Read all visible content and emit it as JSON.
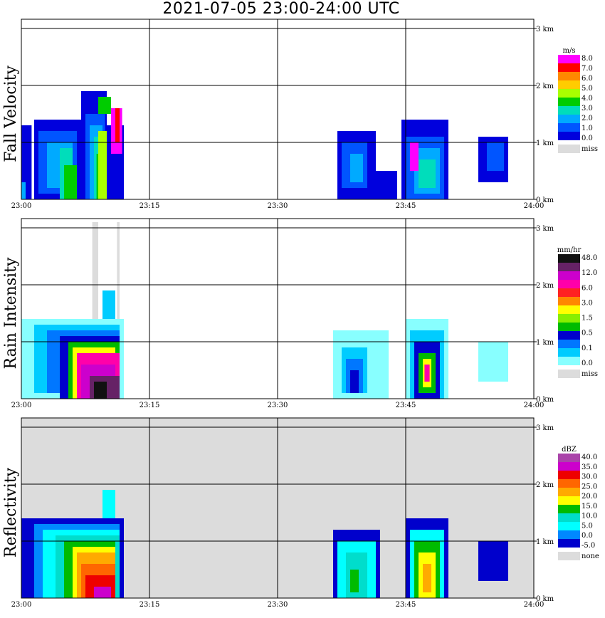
{
  "title": "2021-07-05   23:00-24:00 UTC",
  "x_ticks": [
    "23:00",
    "23:15",
    "23:30",
    "23:45",
    "24:00"
  ],
  "y_ticks": [
    "0 km",
    "1 km",
    "2 km",
    "3 km"
  ],
  "chart_data": [
    {
      "type": "heatmap",
      "ylabel": "Fall Velocity",
      "background": "#ffffff",
      "colorbar": {
        "unit": "m/s",
        "labels": [
          "8.0",
          "7.0",
          "6.0",
          "5.0",
          "4.0",
          "3.0",
          "2.0",
          "1.0",
          "0.0"
        ],
        "colors": [
          "#ff00ff",
          "#ff0000",
          "#ff8800",
          "#ffcc00",
          "#aaff00",
          "#00cc00",
          "#00ddbb",
          "#00aaff",
          "#0055ff",
          "#0000dd"
        ],
        "missing_label": "miss",
        "missing_color": "#dcdcdc"
      },
      "cells": [
        {
          "t0": 0.0,
          "t1": 1.2,
          "h0": 0.0,
          "h1": 1.3,
          "color": "#0000dd"
        },
        {
          "t0": 0.0,
          "t1": 0.5,
          "h0": 0.0,
          "h1": 0.3,
          "color": "#00aaff"
        },
        {
          "t0": 1.5,
          "t1": 7.0,
          "h0": 0.0,
          "h1": 1.4,
          "color": "#0000dd"
        },
        {
          "t0": 2.0,
          "t1": 6.5,
          "h0": 0.1,
          "h1": 1.2,
          "color": "#0055ff"
        },
        {
          "t0": 3.0,
          "t1": 6.0,
          "h0": 0.2,
          "h1": 1.0,
          "color": "#00aaff"
        },
        {
          "t0": 4.5,
          "t1": 6.0,
          "h0": 0.0,
          "h1": 0.9,
          "color": "#00ddbb"
        },
        {
          "t0": 5.0,
          "t1": 6.5,
          "h0": 0.0,
          "h1": 0.6,
          "color": "#00cc00"
        },
        {
          "t0": 7.0,
          "t1": 10.0,
          "h0": 0.0,
          "h1": 1.9,
          "color": "#0000dd"
        },
        {
          "t0": 7.5,
          "t1": 9.8,
          "h0": 0.0,
          "h1": 1.5,
          "color": "#0055ff"
        },
        {
          "t0": 8.0,
          "t1": 9.5,
          "h0": 0.0,
          "h1": 1.3,
          "color": "#00aaff"
        },
        {
          "t0": 8.5,
          "t1": 9.5,
          "h0": 0.0,
          "h1": 1.1,
          "color": "#00ddbb"
        },
        {
          "t0": 8.8,
          "t1": 9.3,
          "h0": 0.0,
          "h1": 0.8,
          "color": "#00cc00"
        },
        {
          "t0": 9.0,
          "t1": 10.5,
          "h0": 0.0,
          "h1": 1.2,
          "color": "#aaff00"
        },
        {
          "t0": 10.0,
          "t1": 12.0,
          "h0": 0.0,
          "h1": 1.3,
          "color": "#0000dd"
        },
        {
          "t0": 10.5,
          "t1": 11.8,
          "h0": 0.8,
          "h1": 1.6,
          "color": "#ff00ff"
        },
        {
          "t0": 11.0,
          "t1": 11.5,
          "h0": 1.0,
          "h1": 1.6,
          "color": "#ff0000"
        },
        {
          "t0": 9.0,
          "t1": 10.5,
          "h0": 1.5,
          "h1": 1.8,
          "color": "#00cc00"
        },
        {
          "t0": 37.0,
          "t1": 41.5,
          "h0": 0.0,
          "h1": 1.2,
          "color": "#0000dd"
        },
        {
          "t0": 37.5,
          "t1": 40.5,
          "h0": 0.2,
          "h1": 1.0,
          "color": "#0055ff"
        },
        {
          "t0": 38.5,
          "t1": 40.0,
          "h0": 0.3,
          "h1": 0.8,
          "color": "#00aaff"
        },
        {
          "t0": 41.5,
          "t1": 44.0,
          "h0": 0.0,
          "h1": 0.5,
          "color": "#0000dd"
        },
        {
          "t0": 44.5,
          "t1": 50.0,
          "h0": 0.0,
          "h1": 1.4,
          "color": "#0000dd"
        },
        {
          "t0": 45.0,
          "t1": 49.5,
          "h0": 0.0,
          "h1": 1.1,
          "color": "#0055ff"
        },
        {
          "t0": 46.0,
          "t1": 49.0,
          "h0": 0.1,
          "h1": 0.9,
          "color": "#00aaff"
        },
        {
          "t0": 46.5,
          "t1": 48.5,
          "h0": 0.2,
          "h1": 0.7,
          "color": "#00ddbb"
        },
        {
          "t0": 45.5,
          "t1": 46.5,
          "h0": 0.5,
          "h1": 1.0,
          "color": "#ff00ff"
        },
        {
          "t0": 53.5,
          "t1": 57.0,
          "h0": 0.3,
          "h1": 1.1,
          "color": "#0000dd"
        },
        {
          "t0": 54.5,
          "t1": 56.5,
          "h0": 0.5,
          "h1": 1.0,
          "color": "#0055ff"
        }
      ]
    },
    {
      "type": "heatmap",
      "ylabel": "Rain Intensity",
      "background": "#ffffff",
      "colorbar": {
        "unit": "mm/hr",
        "labels": [
          "48.0",
          "12.0",
          "6.0",
          "3.0",
          "1.5",
          "0.5",
          "0.1",
          "0.0"
        ],
        "colors": [
          "#111111",
          "#662266",
          "#cc00cc",
          "#ff00aa",
          "#ff2222",
          "#ff8800",
          "#ffff00",
          "#88ee00",
          "#00bb00",
          "#0000cc",
          "#0077ff",
          "#00ccff",
          "#88ffff"
        ],
        "missing_label": "miss",
        "missing_color": "#dcdcdc"
      },
      "cells": [
        {
          "t0": 8.3,
          "t1": 9.0,
          "h0": 0.0,
          "h1": 3.1,
          "color": "#dcdcdc"
        },
        {
          "t0": 11.2,
          "t1": 11.5,
          "h0": 0.0,
          "h1": 3.1,
          "color": "#dcdcdc"
        },
        {
          "t0": 0.0,
          "t1": 12.0,
          "h0": 0.0,
          "h1": 1.4,
          "color": "#88ffff"
        },
        {
          "t0": 1.5,
          "t1": 11.5,
          "h0": 0.1,
          "h1": 1.3,
          "color": "#00ccff"
        },
        {
          "t0": 3.0,
          "t1": 11.5,
          "h0": 0.1,
          "h1": 1.2,
          "color": "#0077ff"
        },
        {
          "t0": 4.5,
          "t1": 11.5,
          "h0": 0.0,
          "h1": 1.1,
          "color": "#0000cc"
        },
        {
          "t0": 5.5,
          "t1": 11.5,
          "h0": 0.0,
          "h1": 1.0,
          "color": "#00bb00"
        },
        {
          "t0": 6.0,
          "t1": 11.0,
          "h0": 0.0,
          "h1": 0.9,
          "color": "#ffff00"
        },
        {
          "t0": 6.5,
          "t1": 11.5,
          "h0": 0.0,
          "h1": 0.8,
          "color": "#ff00aa"
        },
        {
          "t0": 7.0,
          "t1": 11.0,
          "h0": 0.0,
          "h1": 0.6,
          "color": "#cc00cc"
        },
        {
          "t0": 8.0,
          "t1": 11.5,
          "h0": 0.0,
          "h1": 0.4,
          "color": "#662266"
        },
        {
          "t0": 8.5,
          "t1": 10.0,
          "h0": 0.0,
          "h1": 0.3,
          "color": "#111111"
        },
        {
          "t0": 9.5,
          "t1": 11.0,
          "h0": 1.4,
          "h1": 1.9,
          "color": "#00ccff"
        },
        {
          "t0": 36.5,
          "t1": 43.0,
          "h0": 0.0,
          "h1": 1.2,
          "color": "#88ffff"
        },
        {
          "t0": 37.5,
          "t1": 40.5,
          "h0": 0.1,
          "h1": 0.9,
          "color": "#00ccff"
        },
        {
          "t0": 38.0,
          "t1": 40.0,
          "h0": 0.1,
          "h1": 0.7,
          "color": "#0077ff"
        },
        {
          "t0": 38.5,
          "t1": 39.5,
          "h0": 0.1,
          "h1": 0.5,
          "color": "#0000cc"
        },
        {
          "t0": 45.0,
          "t1": 50.0,
          "h0": 0.0,
          "h1": 1.4,
          "color": "#88ffff"
        },
        {
          "t0": 45.5,
          "t1": 49.5,
          "h0": 0.0,
          "h1": 1.2,
          "color": "#00ccff"
        },
        {
          "t0": 46.0,
          "t1": 49.0,
          "h0": 0.0,
          "h1": 1.0,
          "color": "#0000cc"
        },
        {
          "t0": 46.5,
          "t1": 48.5,
          "h0": 0.1,
          "h1": 0.8,
          "color": "#00bb00"
        },
        {
          "t0": 47.0,
          "t1": 48.0,
          "h0": 0.2,
          "h1": 0.7,
          "color": "#ffff00"
        },
        {
          "t0": 47.2,
          "t1": 47.8,
          "h0": 0.3,
          "h1": 0.6,
          "color": "#ff00aa"
        },
        {
          "t0": 53.5,
          "t1": 57.0,
          "h0": 0.3,
          "h1": 1.0,
          "color": "#88ffff"
        }
      ]
    },
    {
      "type": "heatmap",
      "ylabel": "Reflectivity",
      "background": "#dcdcdc",
      "colorbar": {
        "unit": "dBZ",
        "labels": [
          "40.0",
          "35.0",
          "30.0",
          "25.0",
          "20.0",
          "15.0",
          "10.0",
          "5.0",
          "0.0",
          "-5.0"
        ],
        "colors": [
          "#aa44aa",
          "#cc00cc",
          "#ee0000",
          "#ff6600",
          "#ffaa00",
          "#ffff00",
          "#00bb00",
          "#00ddcc",
          "#00ffff",
          "#0088ff",
          "#0000cc"
        ],
        "missing_label": "none",
        "missing_color": "#dcdcdc"
      },
      "cells": [
        {
          "t0": 0.0,
          "t1": 12.0,
          "h0": 0.0,
          "h1": 1.4,
          "color": "#0000cc"
        },
        {
          "t0": 1.5,
          "t1": 11.5,
          "h0": 0.0,
          "h1": 1.3,
          "color": "#0088ff"
        },
        {
          "t0": 2.5,
          "t1": 11.5,
          "h0": 0.0,
          "h1": 1.2,
          "color": "#00ffff"
        },
        {
          "t0": 4.0,
          "t1": 11.5,
          "h0": 0.0,
          "h1": 1.1,
          "color": "#00ddcc"
        },
        {
          "t0": 5.0,
          "t1": 11.0,
          "h0": 0.0,
          "h1": 1.0,
          "color": "#00bb00"
        },
        {
          "t0": 6.0,
          "t1": 11.0,
          "h0": 0.0,
          "h1": 0.9,
          "color": "#ffff00"
        },
        {
          "t0": 6.5,
          "t1": 11.0,
          "h0": 0.0,
          "h1": 0.8,
          "color": "#ffaa00"
        },
        {
          "t0": 7.0,
          "t1": 11.0,
          "h0": 0.0,
          "h1": 0.6,
          "color": "#ff6600"
        },
        {
          "t0": 7.5,
          "t1": 11.0,
          "h0": 0.0,
          "h1": 0.4,
          "color": "#ee0000"
        },
        {
          "t0": 8.5,
          "t1": 10.5,
          "h0": 0.0,
          "h1": 0.2,
          "color": "#cc00cc"
        },
        {
          "t0": 9.5,
          "t1": 11.0,
          "h0": 1.4,
          "h1": 1.9,
          "color": "#00ffff"
        },
        {
          "t0": 36.5,
          "t1": 42.0,
          "h0": 0.0,
          "h1": 1.2,
          "color": "#0000cc"
        },
        {
          "t0": 37.0,
          "t1": 41.5,
          "h0": 0.0,
          "h1": 1.0,
          "color": "#00ffff"
        },
        {
          "t0": 38.0,
          "t1": 40.5,
          "h0": 0.0,
          "h1": 0.8,
          "color": "#00ddcc"
        },
        {
          "t0": 38.5,
          "t1": 39.5,
          "h0": 0.1,
          "h1": 0.5,
          "color": "#00bb00"
        },
        {
          "t0": 45.0,
          "t1": 50.0,
          "h0": 0.0,
          "h1": 1.4,
          "color": "#0000cc"
        },
        {
          "t0": 45.5,
          "t1": 49.5,
          "h0": 0.0,
          "h1": 1.2,
          "color": "#00ffff"
        },
        {
          "t0": 46.0,
          "t1": 49.0,
          "h0": 0.0,
          "h1": 1.0,
          "color": "#00bb00"
        },
        {
          "t0": 46.5,
          "t1": 48.5,
          "h0": 0.0,
          "h1": 0.8,
          "color": "#ffff00"
        },
        {
          "t0": 47.0,
          "t1": 48.0,
          "h0": 0.1,
          "h1": 0.6,
          "color": "#ffaa00"
        },
        {
          "t0": 53.5,
          "t1": 57.0,
          "h0": 0.3,
          "h1": 1.0,
          "color": "#0000cc"
        }
      ]
    }
  ]
}
